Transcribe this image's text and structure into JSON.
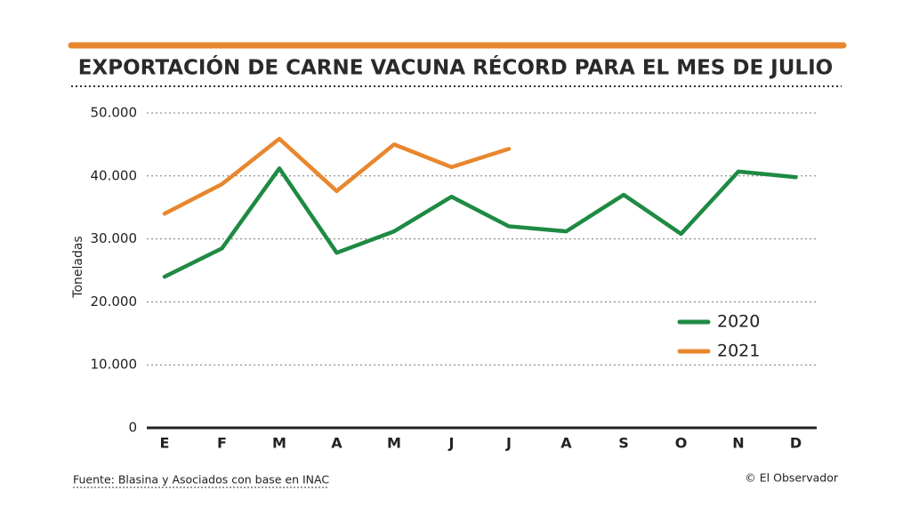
{
  "chart_data": {
    "type": "line",
    "title": "EXPORTACIÓN DE CARNE VACUNA RÉCORD PARA EL MES DE JULIO",
    "y_label": "Toneladas",
    "source": "Fuente: Blasina y Asociados con base en INAC",
    "credit": "© El Observador",
    "categories": [
      "E",
      "F",
      "M",
      "A",
      "M",
      "J",
      "J",
      "A",
      "S",
      "O",
      "N",
      "D"
    ],
    "series": [
      {
        "name": "2020",
        "color": "#1e8a43",
        "values": [
          24000,
          28500,
          41200,
          27800,
          31200,
          36700,
          32000,
          31200,
          37000,
          30800,
          40700,
          39800
        ]
      },
      {
        "name": "2021",
        "color": "#e8872e",
        "values": [
          34000,
          38700,
          45900,
          37600,
          45000,
          41400,
          44300,
          null,
          null,
          null,
          null,
          null
        ]
      }
    ],
    "ylim": [
      0,
      50000
    ],
    "yticks": [
      0,
      {
        "value": 10000,
        "label": "10.000"
      },
      {
        "value": 20000,
        "label": "20.000"
      },
      {
        "value": 30000,
        "label": "30.000"
      },
      {
        "value": 40000,
        "label": "40.000"
      },
      {
        "value": 50000,
        "label": "50.000"
      }
    ],
    "grid": true
  }
}
